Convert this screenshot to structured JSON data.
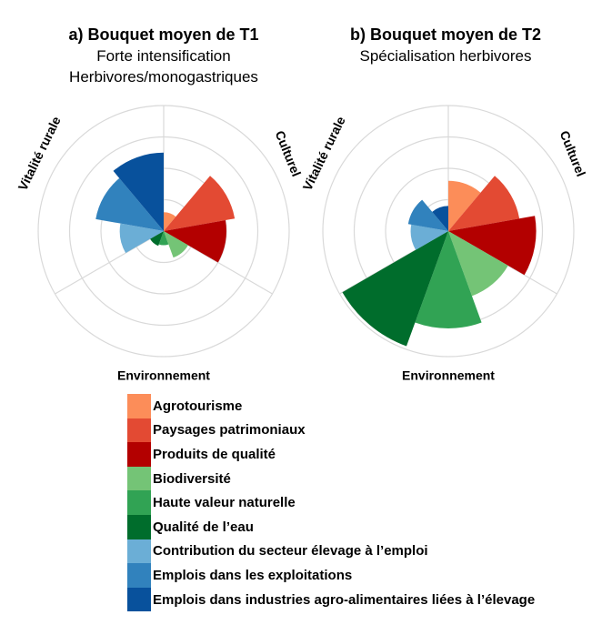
{
  "chart_data": [
    {
      "type": "polar-area",
      "title": "a) Bouquet moyen de T1",
      "subtitle": [
        "Forte intensification",
        "Herbivores/monogastriques"
      ],
      "max": 4,
      "groups": [
        "Culturel",
        "Environnement",
        "Vitalité rurale"
      ],
      "categories": [
        "Agrotourisme",
        "Paysages patrimoniaux",
        "Produits de qualité",
        "Biodiversité",
        "Haute valeur naturelle",
        "Qualité de l’eau",
        "Contribution du secteur élevage à l’emploi",
        "Emplois dans les exploitations",
        "Emplois dans industries agro-alimentaires liées à l’élevage"
      ],
      "values": [
        0.6,
        2.3,
        2.0,
        0.9,
        0.45,
        0.5,
        1.4,
        2.2,
        2.5
      ]
    },
    {
      "type": "polar-area",
      "title": "b) Bouquet moyen de T2",
      "subtitle": [
        "Spécialisation herbivores"
      ],
      "max": 4,
      "groups": [
        "Culturel",
        "Environnement",
        "Vitalité rurale"
      ],
      "categories": [
        "Agrotourisme",
        "Paysages patrimoniaux",
        "Produits de qualité",
        "Biodiversité",
        "Haute valeur naturelle",
        "Qualité de l’eau",
        "Contribution du secteur élevage à l’emploi",
        "Emplois dans les exploitations",
        "Emplois dans industries agro-alimentaires liées à l’élevage"
      ],
      "values": [
        1.6,
        2.3,
        2.8,
        2.2,
        3.1,
        3.9,
        1.2,
        1.3,
        0.8
      ]
    }
  ],
  "colors": [
    "#fc8d59",
    "#e34a33",
    "#b30000",
    "#74c476",
    "#31a354",
    "#006d2c",
    "#6baed6",
    "#3182bd",
    "#08519c"
  ],
  "legend": [
    "Agrotourisme",
    "Paysages patrimoniaux",
    "Produits de qualité",
    "Biodiversité",
    "Haute valeur naturelle",
    "Qualité de l’eau",
    "Contribution du secteur élevage à l’emploi",
    "Emplois dans les exploitations",
    "Emplois dans industries agro-alimentaires liées à l’élevage"
  ]
}
